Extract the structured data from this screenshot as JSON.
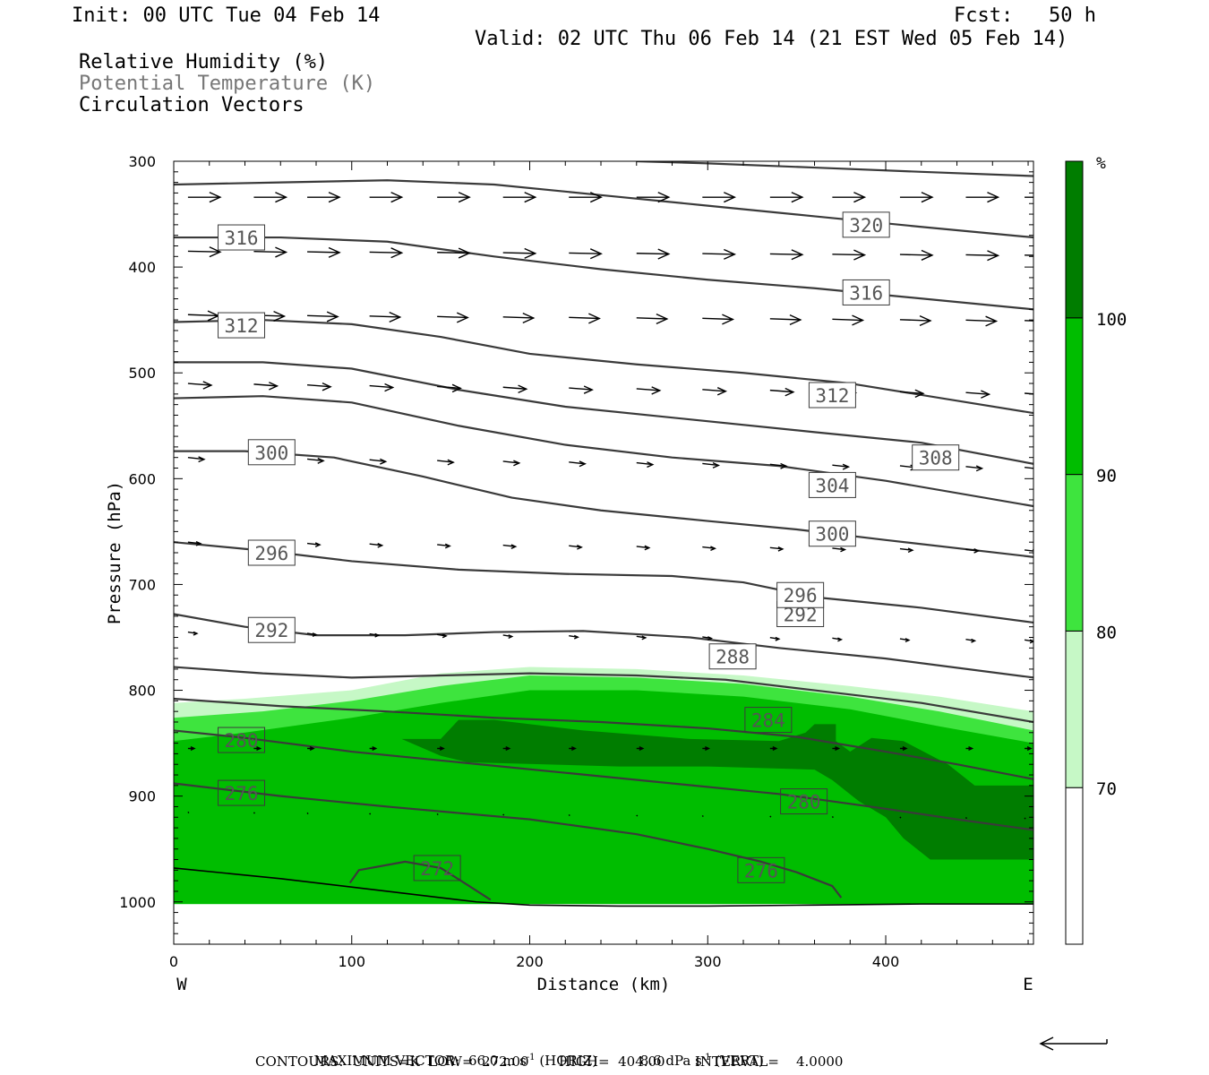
{
  "header": {
    "init": "Init: 00 UTC Tue 04 Feb 14",
    "fcst": "Fcst:   50 h",
    "valid": "Valid: 02 UTC Thu 06 Feb 14 (21 EST Wed 05 Feb 14)",
    "fields": [
      "Relative Humidity (%)",
      "Potential Temperature (K)",
      "Circulation Vectors"
    ]
  },
  "colors": {
    "rh_70_80": "#c6f8c6",
    "rh_80_90": "#3ee43e",
    "rh_90_100": "#00bd00",
    "rh_100": "#007d00",
    "contour": "#3a3a3a",
    "field_label_gray": "#777777"
  },
  "chart_data": {
    "type": "cross-section",
    "xlabel": "Distance (km)",
    "ylabel": "Pressure (hPa)",
    "xlim": [
      0,
      483
    ],
    "ylim": [
      1040,
      300
    ],
    "x_ticks": [
      0,
      100,
      200,
      300,
      400
    ],
    "y_ticks": [
      300,
      400,
      500,
      600,
      700,
      800,
      900,
      1000
    ],
    "x_ends": [
      "W",
      "E"
    ],
    "colorbar": {
      "unit": "%",
      "levels": [
        70,
        80,
        90,
        100
      ]
    },
    "rh_regions": [
      {
        "level": "70-80",
        "points": [
          [
            0,
            812
          ],
          [
            40,
            808
          ],
          [
            100,
            800
          ],
          [
            150,
            784
          ],
          [
            200,
            778
          ],
          [
            260,
            780
          ],
          [
            320,
            786
          ],
          [
            380,
            796
          ],
          [
            430,
            806
          ],
          [
            483,
            820
          ],
          [
            483,
            1002
          ],
          [
            0,
            1002
          ]
        ]
      },
      {
        "level": "80-90",
        "points": [
          [
            0,
            826
          ],
          [
            50,
            820
          ],
          [
            100,
            810
          ],
          [
            150,
            796
          ],
          [
            200,
            786
          ],
          [
            260,
            788
          ],
          [
            320,
            794
          ],
          [
            380,
            806
          ],
          [
            430,
            820
          ],
          [
            483,
            838
          ],
          [
            483,
            1002
          ],
          [
            0,
            1002
          ]
        ]
      },
      {
        "level": "90-100",
        "points": [
          [
            0,
            848
          ],
          [
            40,
            840
          ],
          [
            100,
            826
          ],
          [
            150,
            812
          ],
          [
            200,
            800
          ],
          [
            260,
            800
          ],
          [
            320,
            806
          ],
          [
            380,
            818
          ],
          [
            430,
            834
          ],
          [
            483,
            850
          ],
          [
            483,
            1002
          ],
          [
            0,
            1002
          ]
        ]
      },
      {
        "level": "100",
        "points": [
          [
            128,
            846
          ],
          [
            150,
            846
          ],
          [
            160,
            828
          ],
          [
            180,
            828
          ],
          [
            230,
            838
          ],
          [
            290,
            846
          ],
          [
            340,
            848
          ],
          [
            355,
            840
          ],
          [
            360,
            832
          ],
          [
            372,
            832
          ],
          [
            372,
            848
          ],
          [
            380,
            858
          ],
          [
            392,
            845
          ],
          [
            410,
            848
          ],
          [
            435,
            870
          ],
          [
            450,
            890
          ],
          [
            483,
            890
          ],
          [
            483,
            960
          ],
          [
            425,
            960
          ],
          [
            410,
            940
          ],
          [
            400,
            920
          ],
          [
            385,
            905
          ],
          [
            370,
            885
          ],
          [
            360,
            875
          ],
          [
            300,
            872
          ],
          [
            250,
            872
          ],
          [
            165,
            868
          ],
          [
            150,
            862
          ]
        ]
      }
    ],
    "theta_contours": [
      {
        "value": 272,
        "points": [
          [
            99,
            982
          ],
          [
            104,
            970
          ],
          [
            130,
            962
          ],
          [
            150,
            968
          ],
          [
            166,
            985
          ],
          [
            178,
            998
          ]
        ],
        "label_at": [
          148,
          968
        ]
      },
      {
        "value": 276,
        "points": [
          [
            0,
            888
          ],
          [
            60,
            900
          ],
          [
            120,
            910
          ],
          [
            200,
            922
          ],
          [
            260,
            936
          ],
          [
            300,
            950
          ],
          [
            330,
            962
          ],
          [
            350,
            972
          ],
          [
            370,
            985
          ],
          [
            375,
            996
          ]
        ],
        "label_at": [
          330,
          970
        ]
      },
      {
        "value": 280,
        "points": [
          [
            0,
            838
          ],
          [
            40,
            845
          ],
          [
            100,
            858
          ],
          [
            160,
            868
          ],
          [
            220,
            878
          ],
          [
            280,
            888
          ],
          [
            340,
            898
          ],
          [
            400,
            912
          ],
          [
            440,
            922
          ],
          [
            483,
            932
          ]
        ],
        "label_at": [
          354,
          905
        ]
      },
      {
        "value": 284,
        "points": [
          [
            0,
            808
          ],
          [
            60,
            815
          ],
          [
            120,
            820
          ],
          [
            180,
            826
          ],
          [
            240,
            830
          ],
          [
            300,
            836
          ],
          [
            350,
            844
          ],
          [
            400,
            858
          ],
          [
            440,
            870
          ],
          [
            483,
            884
          ]
        ],
        "label_at": [
          334,
          828
        ]
      },
      {
        "value": 288,
        "points": [
          [
            0,
            778
          ],
          [
            50,
            784
          ],
          [
            100,
            788
          ],
          [
            150,
            786
          ],
          [
            200,
            784
          ],
          [
            260,
            786
          ],
          [
            310,
            790
          ],
          [
            360,
            800
          ],
          [
            420,
            812
          ],
          [
            483,
            830
          ]
        ],
        "label_at": [
          314,
          768
        ]
      },
      {
        "value": 292,
        "points": [
          [
            0,
            728
          ],
          [
            40,
            740
          ],
          [
            80,
            748
          ],
          [
            130,
            748
          ],
          [
            180,
            745
          ],
          [
            230,
            744
          ],
          [
            290,
            750
          ],
          [
            340,
            760
          ],
          [
            400,
            770
          ],
          [
            483,
            788
          ]
        ],
        "label_at": [
          352,
          728
        ]
      },
      {
        "value": 296,
        "points": [
          [
            0,
            660
          ],
          [
            50,
            668
          ],
          [
            100,
            678
          ],
          [
            160,
            686
          ],
          [
            220,
            690
          ],
          [
            280,
            692
          ],
          [
            320,
            698
          ],
          [
            360,
            712
          ],
          [
            420,
            722
          ],
          [
            483,
            736
          ]
        ],
        "label_at": [
          352,
          710
        ]
      },
      {
        "value": 300,
        "points": [
          [
            0,
            574
          ],
          [
            40,
            574
          ],
          [
            90,
            580
          ],
          [
            140,
            598
          ],
          [
            190,
            618
          ],
          [
            240,
            630
          ],
          [
            300,
            640
          ],
          [
            350,
            648
          ],
          [
            400,
            658
          ],
          [
            483,
            674
          ]
        ],
        "label_at": [
          370,
          652
        ]
      },
      {
        "value": 304,
        "points": [
          [
            0,
            524
          ],
          [
            50,
            522
          ],
          [
            100,
            528
          ],
          [
            160,
            550
          ],
          [
            220,
            568
          ],
          [
            280,
            580
          ],
          [
            340,
            588
          ],
          [
            400,
            602
          ],
          [
            483,
            626
          ]
        ],
        "label_at": [
          370,
          606
        ]
      },
      {
        "value": 308,
        "points": [
          [
            0,
            490
          ],
          [
            50,
            490
          ],
          [
            100,
            496
          ],
          [
            160,
            516
          ],
          [
            220,
            532
          ],
          [
            290,
            544
          ],
          [
            360,
            556
          ],
          [
            420,
            566
          ],
          [
            483,
            586
          ]
        ],
        "label_at": [
          428,
          580
        ]
      },
      {
        "value": 312,
        "points": [
          [
            0,
            452
          ],
          [
            50,
            450
          ],
          [
            100,
            454
          ],
          [
            150,
            466
          ],
          [
            200,
            482
          ],
          [
            260,
            492
          ],
          [
            320,
            500
          ],
          [
            380,
            510
          ],
          [
            483,
            538
          ]
        ],
        "label_at": [
          370,
          521
        ]
      },
      {
        "value": 316,
        "points": [
          [
            0,
            372
          ],
          [
            60,
            372
          ],
          [
            120,
            376
          ],
          [
            180,
            390
          ],
          [
            240,
            402
          ],
          [
            300,
            412
          ],
          [
            360,
            420
          ],
          [
            483,
            440
          ]
        ],
        "label_at": [
          389,
          424
        ]
      },
      {
        "value": 320,
        "points": [
          [
            0,
            322
          ],
          [
            60,
            320
          ],
          [
            120,
            318
          ],
          [
            180,
            322
          ],
          [
            240,
            332
          ],
          [
            300,
            342
          ],
          [
            360,
            352
          ],
          [
            420,
            362
          ],
          [
            483,
            372
          ]
        ],
        "label_at": [
          389,
          360
        ]
      },
      {
        "value": 324,
        "points": [
          [
            260,
            300
          ],
          [
            300,
            302
          ],
          [
            360,
            306
          ],
          [
            420,
            310
          ],
          [
            483,
            314
          ]
        ],
        "label_at": null
      },
      {
        "value": 316,
        "points": [
          [
            0,
            372
          ]
        ],
        "label_at": [
          38,
          372
        ],
        "label_only": true
      },
      {
        "value": 312,
        "points": [
          [
            0,
            452
          ]
        ],
        "label_at": [
          38,
          455
        ],
        "label_only": true
      },
      {
        "value": 300,
        "points": [
          [
            0,
            574
          ]
        ],
        "label_at": [
          55,
          575
        ],
        "label_only": true
      },
      {
        "value": 296,
        "points": [
          [
            0,
            660
          ]
        ],
        "label_at": [
          55,
          670
        ],
        "label_only": true
      },
      {
        "value": 292,
        "points": [
          [
            0,
            728
          ]
        ],
        "label_at": [
          55,
          743
        ],
        "label_only": true
      },
      {
        "value": 280,
        "points": [
          [
            0,
            838
          ]
        ],
        "label_at": [
          38,
          847
        ],
        "label_only": true
      },
      {
        "value": 276,
        "points": [
          [
            0,
            888
          ]
        ],
        "label_at": [
          38,
          897
        ],
        "label_only": true
      }
    ],
    "surface_line": [
      [
        0,
        968
      ],
      [
        60,
        978
      ],
      [
        120,
        990
      ],
      [
        170,
        1000
      ],
      [
        200,
        1003
      ],
      [
        250,
        1004
      ],
      [
        300,
        1004
      ],
      [
        360,
        1003
      ],
      [
        420,
        1002
      ],
      [
        483,
        1002
      ]
    ],
    "vector_rows": [
      {
        "p": 334,
        "xs": [
          8,
          45,
          75,
          110,
          148,
          185,
          222,
          260,
          297,
          335,
          370,
          408,
          445,
          478
        ],
        "len": 36,
        "dp": 0
      },
      {
        "p": 385,
        "xs": [
          8,
          45,
          75,
          110,
          148,
          185,
          222,
          260,
          297,
          335,
          370,
          408,
          445,
          478
        ],
        "len": 36,
        "dp": 4
      },
      {
        "p": 445,
        "xs": [
          8,
          45,
          75,
          110,
          148,
          185,
          222,
          260,
          297,
          335,
          370,
          408,
          445,
          478
        ],
        "len": 34,
        "dp": 6
      },
      {
        "p": 510,
        "xs": [
          8,
          45,
          75,
          110,
          148,
          185,
          222,
          260,
          297,
          335,
          370,
          408,
          445,
          478
        ],
        "len": 26,
        "dp": 10
      },
      {
        "p": 580,
        "xs": [
          8,
          45,
          75,
          110,
          148,
          185,
          222,
          260,
          297,
          335,
          370,
          408,
          445,
          478
        ],
        "len": 18,
        "dp": 10
      },
      {
        "p": 660,
        "xs": [
          8,
          45,
          75,
          110,
          148,
          185,
          222,
          260,
          297,
          335,
          370,
          408,
          445,
          478
        ],
        "len": 14,
        "dp": 8
      },
      {
        "p": 745,
        "xs": [
          8,
          45,
          75,
          110,
          148,
          185,
          222,
          260,
          297,
          335,
          370,
          408,
          445,
          478
        ],
        "len": 10,
        "dp": 8
      },
      {
        "p": 855,
        "xs": [
          8,
          45,
          75,
          110,
          148,
          185,
          222,
          260,
          297,
          335,
          370,
          408,
          445,
          478
        ],
        "len": 7,
        "dp": 0
      },
      {
        "p": 915,
        "xs": [
          8,
          45,
          75,
          110,
          148,
          185,
          222,
          260,
          297,
          335,
          370,
          408,
          445,
          478
        ],
        "len": 1,
        "dp": 6
      }
    ]
  },
  "footer": {
    "max_vector_label": "MAXIMUM VECTOR:",
    "horiz_value": "66.0 m s",
    "horiz_sup": "-1",
    "horiz_tag": "(HORIZ)",
    "vert_value": "8.6 dPa s",
    "vert_sup": "-1",
    "vert_tag": "(VERT)",
    "contours": "CONTOURS:  UNITS=K  LOW=  272.00       HIGH=  404.00       INTERVAL=    4.0000"
  }
}
